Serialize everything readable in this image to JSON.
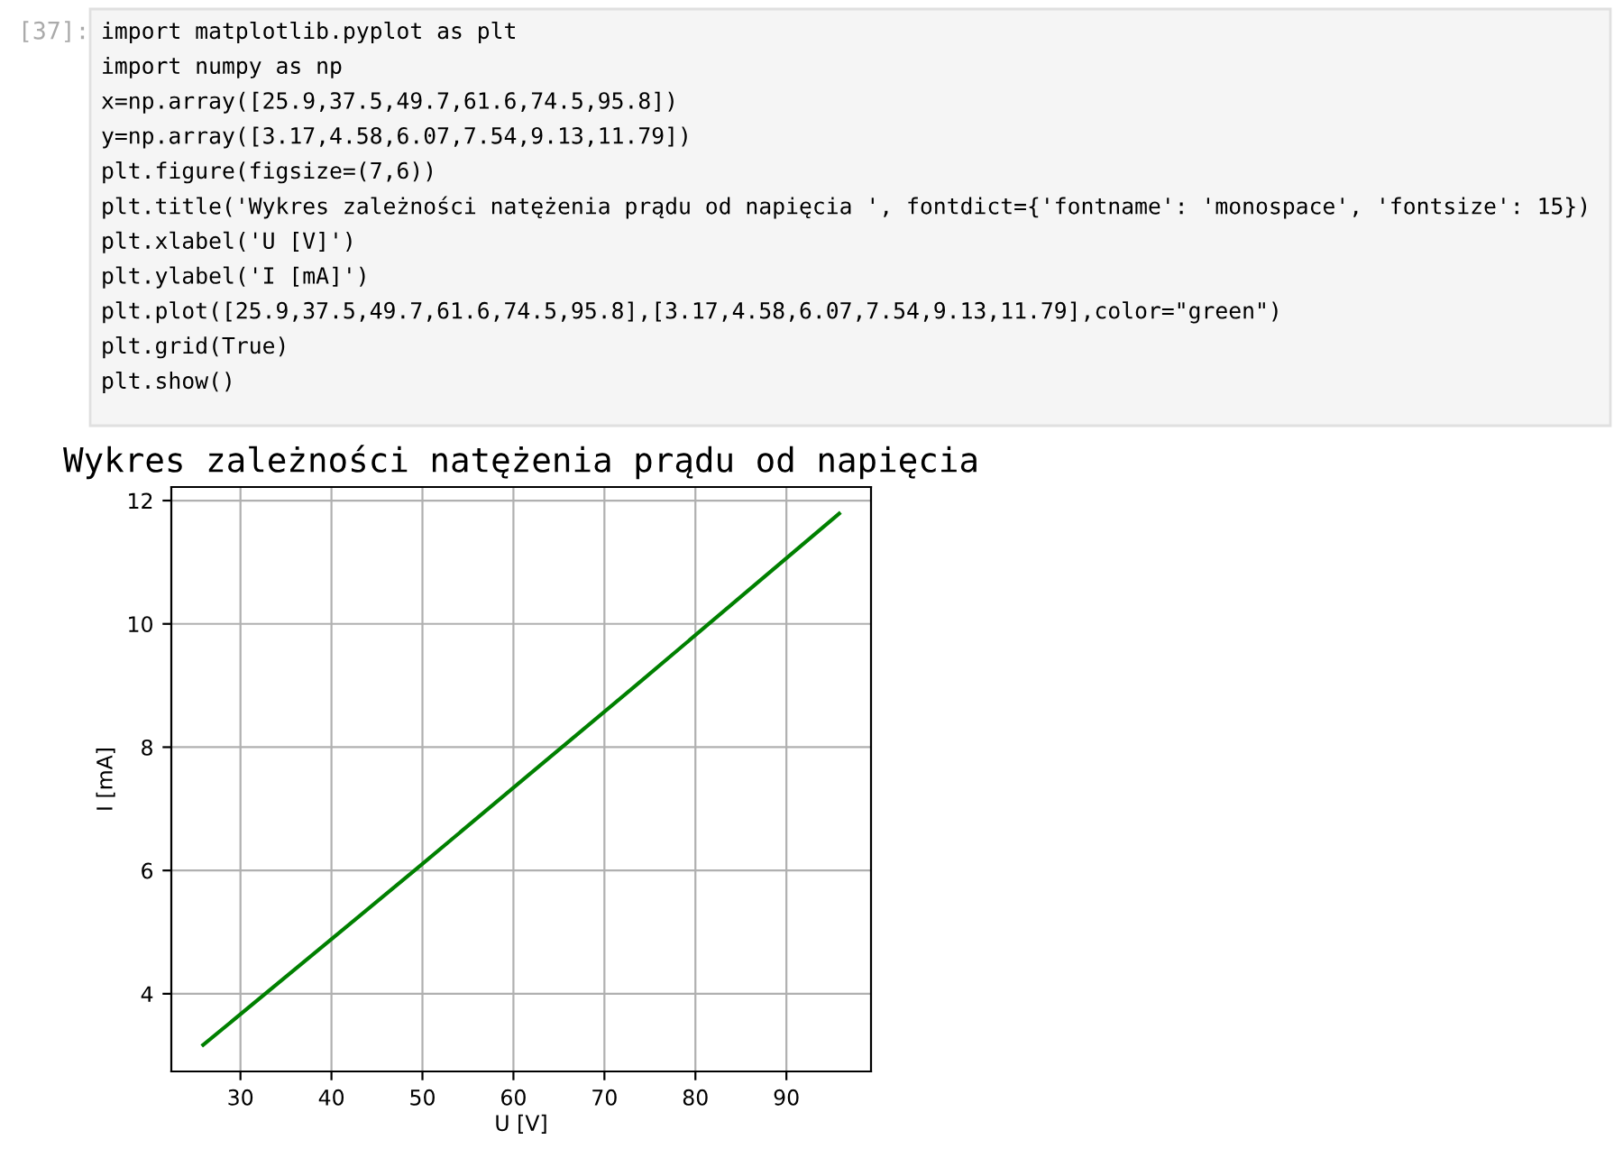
{
  "chart_data": {
    "type": "line",
    "title": "Wykres zależności natężenia prądu od napięcia",
    "xlabel": "U [V]",
    "ylabel": "I [mA]",
    "x": [
      25.9,
      37.5,
      49.7,
      61.6,
      74.5,
      95.8
    ],
    "series": [
      {
        "color": "#008000",
        "values": [
          3.17,
          4.58,
          6.07,
          7.54,
          9.13,
          11.79
        ]
      }
    ],
    "xlim": [
      22.4,
      99.3
    ],
    "xticks": [
      30,
      40,
      50,
      60,
      70,
      80,
      90
    ],
    "ylim": [
      2.74,
      12.22
    ],
    "yticks": [
      4,
      6,
      8,
      10,
      12
    ],
    "grid": true,
    "line_style": "solid",
    "marker": "none",
    "legend": false,
    "annotations": [
      "[37]:",
      "import matplotlib.pyplot as plt",
      "import numpy as np",
      "x=np.array([25.9,37.5,49.7,61.6,74.5,95.8])",
      "y=np.array([3.17,4.58,6.07,7.54,9.13,11.79])",
      "plt.figure(figsize=(7,6))",
      "plt.title('Wykres zależności natężenia prądu od napięcia ', fontdict={'fontname': 'monospace', 'fontsize': 15})",
      "plt.xlabel('U [V]')",
      "plt.ylabel('I [mA]')",
      "plt.plot([25.9,37.5,49.7,61.6,74.5,95.8],[3.17,4.58,6.07,7.54,9.13,11.79],color=\"green\")",
      "plt.grid(True)",
      "plt.show()"
    ]
  }
}
